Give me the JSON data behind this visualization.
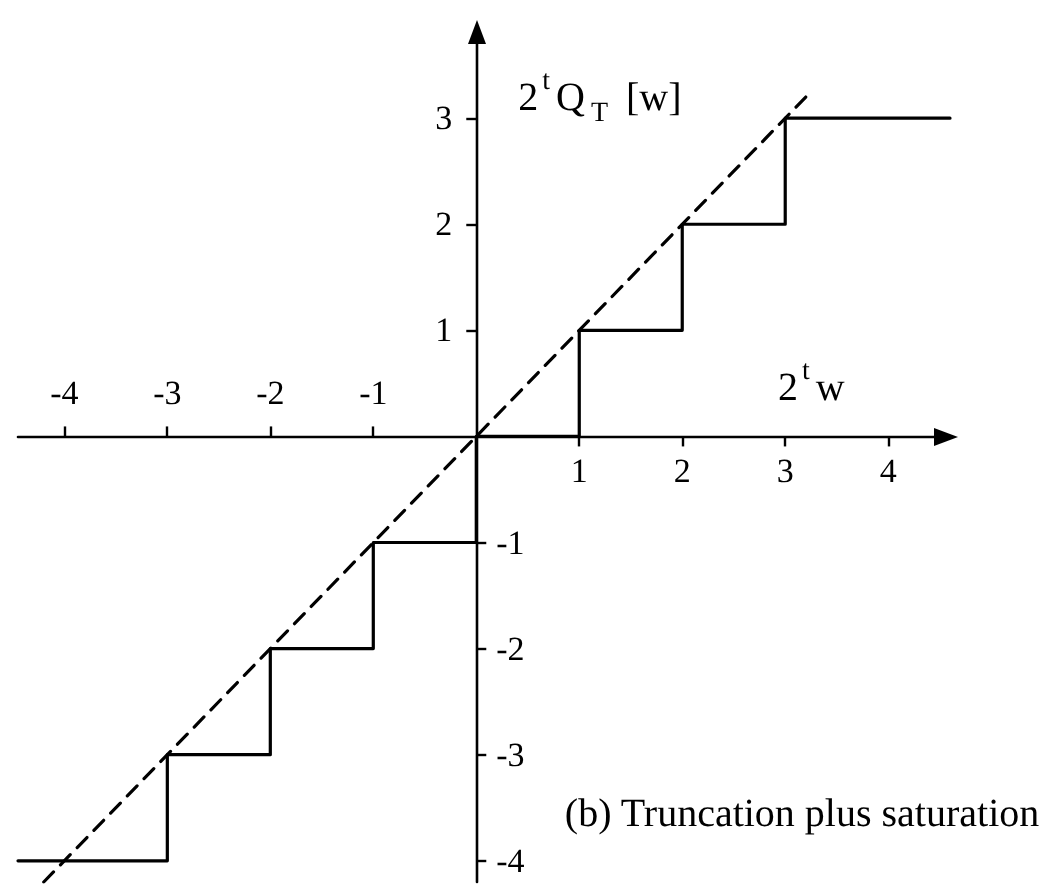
{
  "chart_data": {
    "type": "step",
    "xlabel": "2$^{t}$w",
    "y2label": "2$^{t}$Q$_{T}$ [w]",
    "annotations": [
      "(b) Truncation plus saturation"
    ],
    "series": [
      {
        "color": "#000000",
        "x": [
          -4.45,
          -3,
          -2,
          -1,
          0,
          1,
          2,
          3,
          4.6
        ],
        "values": [
          -4,
          -3,
          -2,
          -1,
          0,
          1,
          2,
          3,
          3
        ]
      },
      {
        "type": "line",
        "color": "#000000",
        "line_style": "dashed",
        "x": [
          -4.2,
          3.2
        ],
        "values": [
          -4.2,
          3.2
        ]
      }
    ],
    "xlim": [
      -4.45,
      4.6
    ],
    "xticks": [
      1,
      2,
      3,
      4
    ],
    "x2lim": [
      -4.45,
      4.6
    ],
    "x2ticks": [
      -4,
      -3,
      -2,
      -1
    ],
    "ylim": [
      -4.2,
      3.85
    ],
    "yticks": [
      1,
      2,
      3
    ],
    "y2lim": [
      -4.2,
      3.85
    ],
    "y2ticks": [
      -4,
      -3,
      -2,
      -1
    ],
    "marker": "none"
  }
}
